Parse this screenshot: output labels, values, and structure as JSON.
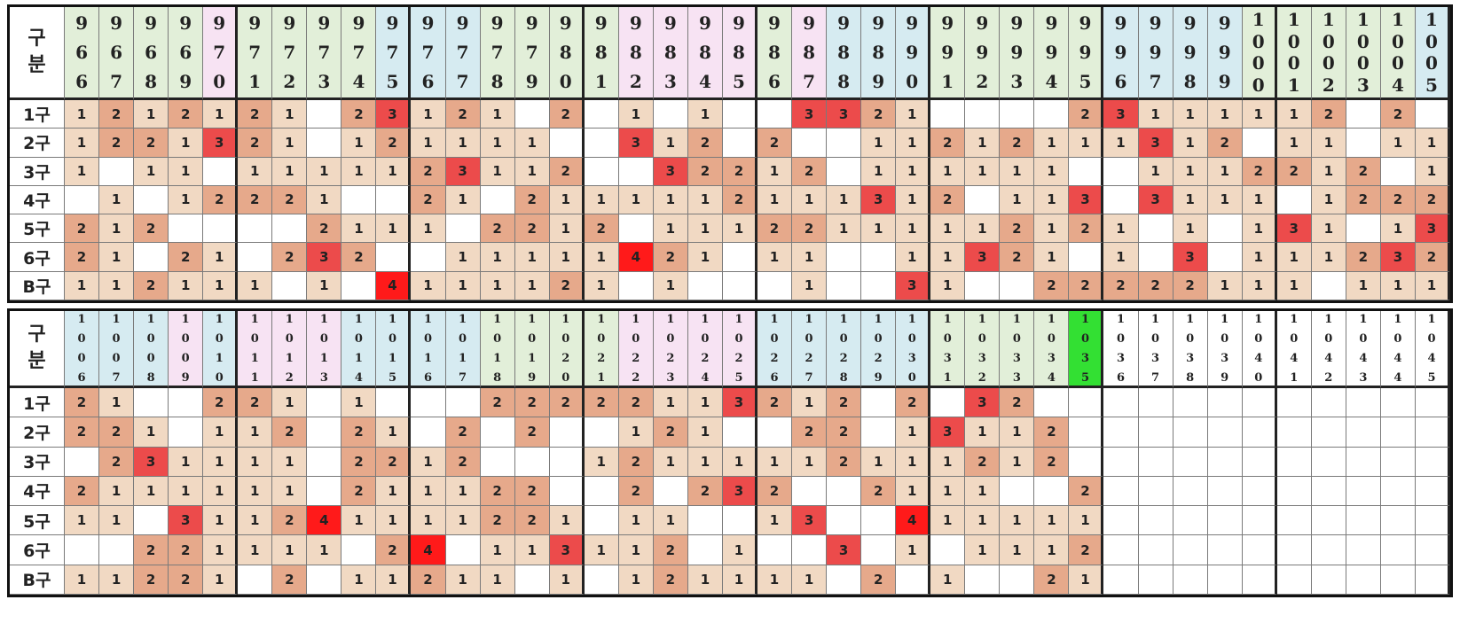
{
  "corner_label": [
    "구",
    "분"
  ],
  "row_labels": [
    "1구",
    "2구",
    "3구",
    "4구",
    "5구",
    "6구",
    "B구"
  ],
  "colors": {
    "header": {
      "G": "#e2efd9",
      "B": "#d6ebf1",
      "P": "#f7e3f3",
      "W": "#ffffff",
      "N": "#33e033"
    },
    "value": {
      "1": "#f1d9c3",
      "2": "#e6a98b",
      "3": "#ec4b4b",
      "4": "#ff1a1a",
      "0": "#ffffff"
    }
  },
  "blocks": [
    {
      "header_style": "large",
      "columns": [
        "966",
        "967",
        "968",
        "969",
        "970",
        "971",
        "972",
        "973",
        "974",
        "975",
        "976",
        "977",
        "978",
        "979",
        "980",
        "981",
        "982",
        "983",
        "984",
        "985",
        "986",
        "987",
        "988",
        "989",
        "990",
        "991",
        "992",
        "993",
        "994",
        "995",
        "996",
        "997",
        "998",
        "999",
        "1000",
        "1001",
        "1002",
        "1003",
        "1004",
        "1005"
      ],
      "header_colors": "GGGGPGGGGBBBGGGGPPPPGPBBBGGGGGBBBBGGGGGB",
      "rows": [
        "1212121023121020101003321000023111112020",
        "1221321012111100312020011212111312011011",
        "1011011111231120032212011111100111221201",
        "0101222100210211111211131201130311101222",
        "2120000211102212011122111112121010131013",
        "2102102320011111421011001132101030111232",
        "1121110104111121010001003100222221110111"
      ]
    },
    {
      "header_style": "small",
      "columns": [
        "1006",
        "1007",
        "1008",
        "1009",
        "1010",
        "1011",
        "1012",
        "1013",
        "1014",
        "1015",
        "1016",
        "1017",
        "1018",
        "1019",
        "1020",
        "1021",
        "1022",
        "1023",
        "1024",
        "1025",
        "1026",
        "1027",
        "1028",
        "1029",
        "1030",
        "1031",
        "1032",
        "1033",
        "1034",
        "1035",
        "1036",
        "1037",
        "1038",
        "1039",
        "1040",
        "1041",
        "1042",
        "1043",
        "1044",
        "1045"
      ],
      "header_colors": "BBBPBPPPBBBBGGGGPPPPBBBBBGGGGNWWWWWWWWWW",
      "rows": [
        "2100221010002222211321202032000000000000",
        "2210112021020200121002201311200000000000",
        "0231111022120001211111211121200000000000",
        "2111111021112200202320021110020000000000",
        "1103112411112210110013004111110000000000",
        "0022111102401131120100301011120000000000",
        "1122102011211010121111020100210000000000"
      ]
    }
  ]
}
